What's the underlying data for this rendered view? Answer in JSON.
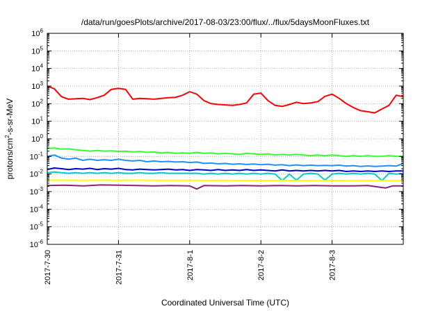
{
  "chart_data": {
    "type": "line",
    "title": "/data/run/goesPlots/archive/2017-08-03/23:00/flux/../flux/5daysMoonFluxes.txt",
    "xlabel": "Coordinated Universal Time (UTC)",
    "ylabel_parts": {
      "base": "protons/cm",
      "sup": "2",
      "rest": "-s-sr-MeV"
    },
    "y_scale": "log",
    "ylim_exp": [
      -6,
      6
    ],
    "y_tick_labels": [
      {
        "base": "10",
        "exp": "-6"
      },
      {
        "base": "10",
        "exp": "-5"
      },
      {
        "base": "10",
        "exp": "-4"
      },
      {
        "base": "10",
        "exp": "-3"
      },
      {
        "base": "10",
        "exp": "-2"
      },
      {
        "base": "10",
        "exp": "-1"
      },
      {
        "base": "10",
        "exp": "0"
      },
      {
        "base": "10",
        "exp": "1"
      },
      {
        "base": "10",
        "exp": "2"
      },
      {
        "base": "10",
        "exp": "3"
      },
      {
        "base": "10",
        "exp": "4"
      },
      {
        "base": "10",
        "exp": "5"
      },
      {
        "base": "10",
        "exp": "6"
      }
    ],
    "x_tick_labels": [
      "2017-7-30",
      "2017-7-31",
      "2017-8-1",
      "2017-8-2",
      "2017-8-3"
    ],
    "grid": true,
    "xlim_days": [
      0,
      5
    ],
    "series": [
      {
        "color": "#ff0000",
        "points": [
          [
            0.0,
            1000
          ],
          [
            0.1,
            700
          ],
          [
            0.2,
            250
          ],
          [
            0.3,
            180
          ],
          [
            0.4,
            190
          ],
          [
            0.5,
            200
          ],
          [
            0.6,
            170
          ],
          [
            0.7,
            220
          ],
          [
            0.8,
            300
          ],
          [
            0.9,
            650
          ],
          [
            1.0,
            750
          ],
          [
            1.1,
            650
          ],
          [
            1.2,
            180
          ],
          [
            1.3,
            200
          ],
          [
            1.4,
            190
          ],
          [
            1.5,
            180
          ],
          [
            1.6,
            200
          ],
          [
            1.7,
            220
          ],
          [
            1.8,
            230
          ],
          [
            1.9,
            300
          ],
          [
            2.0,
            480
          ],
          [
            2.1,
            350
          ],
          [
            2.2,
            150
          ],
          [
            2.3,
            100
          ],
          [
            2.4,
            90
          ],
          [
            2.5,
            85
          ],
          [
            2.6,
            80
          ],
          [
            2.7,
            90
          ],
          [
            2.8,
            110
          ],
          [
            2.9,
            350
          ],
          [
            3.0,
            400
          ],
          [
            3.1,
            150
          ],
          [
            3.2,
            80
          ],
          [
            3.3,
            70
          ],
          [
            3.4,
            90
          ],
          [
            3.5,
            120
          ],
          [
            3.6,
            100
          ],
          [
            3.7,
            110
          ],
          [
            3.8,
            130
          ],
          [
            3.9,
            260
          ],
          [
            4.0,
            350
          ],
          [
            4.1,
            200
          ],
          [
            4.2,
            100
          ],
          [
            4.3,
            60
          ],
          [
            4.4,
            40
          ],
          [
            4.5,
            35
          ],
          [
            4.6,
            30
          ],
          [
            4.7,
            50
          ],
          [
            4.8,
            80
          ],
          [
            4.9,
            300
          ],
          [
            5.0,
            250
          ]
        ]
      },
      {
        "color": "#33ff33",
        "points": [
          [
            0.0,
            0.28
          ],
          [
            0.1,
            0.3
          ],
          [
            0.2,
            0.26
          ],
          [
            0.3,
            0.27
          ],
          [
            0.4,
            0.24
          ],
          [
            0.5,
            0.22
          ],
          [
            0.6,
            0.2
          ],
          [
            0.7,
            0.22
          ],
          [
            0.8,
            0.2
          ],
          [
            0.9,
            0.21
          ],
          [
            1.0,
            0.19
          ],
          [
            1.1,
            0.2
          ],
          [
            1.2,
            0.18
          ],
          [
            1.3,
            0.19
          ],
          [
            1.4,
            0.17
          ],
          [
            1.5,
            0.18
          ],
          [
            1.6,
            0.16
          ],
          [
            1.7,
            0.17
          ],
          [
            1.8,
            0.15
          ],
          [
            1.9,
            0.16
          ],
          [
            2.0,
            0.15
          ],
          [
            2.1,
            0.17
          ],
          [
            2.2,
            0.15
          ],
          [
            2.3,
            0.16
          ],
          [
            2.4,
            0.14
          ],
          [
            2.5,
            0.15
          ],
          [
            2.6,
            0.14
          ],
          [
            2.7,
            0.13
          ],
          [
            2.8,
            0.15
          ],
          [
            2.9,
            0.14
          ],
          [
            3.0,
            0.13
          ],
          [
            3.1,
            0.14
          ],
          [
            3.2,
            0.12
          ],
          [
            3.3,
            0.13
          ],
          [
            3.4,
            0.12
          ],
          [
            3.5,
            0.13
          ],
          [
            3.6,
            0.12
          ],
          [
            3.7,
            0.11
          ],
          [
            3.8,
            0.12
          ],
          [
            3.9,
            0.11
          ],
          [
            4.0,
            0.12
          ],
          [
            4.1,
            0.11
          ],
          [
            4.2,
            0.1
          ],
          [
            4.3,
            0.11
          ],
          [
            4.4,
            0.1
          ],
          [
            4.5,
            0.11
          ],
          [
            4.6,
            0.1
          ],
          [
            4.7,
            0.1
          ],
          [
            4.8,
            0.11
          ],
          [
            4.9,
            0.1
          ],
          [
            5.0,
            0.1
          ]
        ]
      },
      {
        "color": "#1e90ff",
        "points": [
          [
            0.0,
            0.1
          ],
          [
            0.1,
            0.12
          ],
          [
            0.2,
            0.08
          ],
          [
            0.3,
            0.07
          ],
          [
            0.4,
            0.08
          ],
          [
            0.5,
            0.06
          ],
          [
            0.6,
            0.07
          ],
          [
            0.7,
            0.06
          ],
          [
            0.8,
            0.065
          ],
          [
            0.9,
            0.06
          ],
          [
            1.0,
            0.07
          ],
          [
            1.1,
            0.06
          ],
          [
            1.2,
            0.055
          ],
          [
            1.3,
            0.06
          ],
          [
            1.4,
            0.05
          ],
          [
            1.5,
            0.055
          ],
          [
            1.6,
            0.05
          ],
          [
            1.7,
            0.052
          ],
          [
            1.8,
            0.048
          ],
          [
            1.9,
            0.05
          ],
          [
            2.0,
            0.045
          ],
          [
            2.1,
            0.048
          ],
          [
            2.2,
            0.04
          ],
          [
            2.3,
            0.042
          ],
          [
            2.4,
            0.038
          ],
          [
            2.5,
            0.04
          ],
          [
            2.6,
            0.036
          ],
          [
            2.7,
            0.038
          ],
          [
            2.8,
            0.035
          ],
          [
            2.9,
            0.037
          ],
          [
            3.0,
            0.034
          ],
          [
            3.1,
            0.036
          ],
          [
            3.2,
            0.032
          ],
          [
            3.3,
            0.034
          ],
          [
            3.4,
            0.03
          ],
          [
            3.5,
            0.033
          ],
          [
            3.6,
            0.03
          ],
          [
            3.7,
            0.032
          ],
          [
            3.8,
            0.03
          ],
          [
            3.9,
            0.031
          ],
          [
            4.0,
            0.03
          ],
          [
            4.1,
            0.032
          ],
          [
            4.2,
            0.028
          ],
          [
            4.3,
            0.03
          ],
          [
            4.4,
            0.027
          ],
          [
            4.5,
            0.029
          ],
          [
            4.6,
            0.027
          ],
          [
            4.7,
            0.028
          ],
          [
            4.8,
            0.03
          ],
          [
            4.9,
            0.028
          ],
          [
            5.0,
            0.04
          ]
        ]
      },
      {
        "color": "#0000cc",
        "points": [
          [
            0.0,
            0.018
          ],
          [
            0.1,
            0.022
          ],
          [
            0.2,
            0.02
          ],
          [
            0.3,
            0.018
          ],
          [
            0.4,
            0.02
          ],
          [
            0.5,
            0.019
          ],
          [
            0.6,
            0.021
          ],
          [
            0.7,
            0.018
          ],
          [
            0.8,
            0.02
          ],
          [
            0.9,
            0.019
          ],
          [
            1.0,
            0.021
          ],
          [
            1.1,
            0.018
          ],
          [
            1.2,
            0.017
          ],
          [
            1.3,
            0.019
          ],
          [
            1.4,
            0.018
          ],
          [
            1.5,
            0.017
          ],
          [
            1.6,
            0.018
          ],
          [
            1.7,
            0.019
          ],
          [
            1.8,
            0.017
          ],
          [
            1.9,
            0.018
          ],
          [
            2.0,
            0.016
          ],
          [
            2.1,
            0.018
          ],
          [
            2.2,
            0.017
          ],
          [
            2.3,
            0.016
          ],
          [
            2.4,
            0.018
          ],
          [
            2.5,
            0.016
          ],
          [
            2.6,
            0.017
          ],
          [
            2.7,
            0.016
          ],
          [
            2.8,
            0.018
          ],
          [
            2.9,
            0.016
          ],
          [
            3.0,
            0.017
          ],
          [
            3.1,
            0.016
          ],
          [
            3.2,
            0.015
          ],
          [
            3.3,
            0.017
          ],
          [
            3.4,
            0.015
          ],
          [
            3.5,
            0.016
          ],
          [
            3.6,
            0.015
          ],
          [
            3.7,
            0.016
          ],
          [
            3.8,
            0.015
          ],
          [
            3.9,
            0.016
          ],
          [
            4.0,
            0.015
          ],
          [
            4.1,
            0.016
          ],
          [
            4.2,
            0.014
          ],
          [
            4.3,
            0.015
          ],
          [
            4.4,
            0.014
          ],
          [
            4.5,
            0.015
          ],
          [
            4.6,
            0.014
          ],
          [
            4.7,
            0.015
          ],
          [
            4.8,
            0.014
          ],
          [
            4.9,
            0.015
          ],
          [
            5.0,
            0.015
          ]
        ]
      },
      {
        "color": "#00cccc",
        "points": [
          [
            0.0,
            0.012
          ],
          [
            0.1,
            0.013
          ],
          [
            0.2,
            0.012
          ],
          [
            0.3,
            0.011
          ],
          [
            0.4,
            0.012
          ],
          [
            0.5,
            0.011
          ],
          [
            0.6,
            0.012
          ],
          [
            0.7,
            0.011
          ],
          [
            0.8,
            0.012
          ],
          [
            0.9,
            0.011
          ],
          [
            1.0,
            0.012
          ],
          [
            1.1,
            0.011
          ],
          [
            1.2,
            0.011
          ],
          [
            1.3,
            0.012
          ],
          [
            1.4,
            0.011
          ],
          [
            1.5,
            0.011
          ],
          [
            1.6,
            0.012
          ],
          [
            1.7,
            0.011
          ],
          [
            1.8,
            0.011
          ],
          [
            1.9,
            0.011
          ],
          [
            2.0,
            0.011
          ],
          [
            2.1,
            0.011
          ],
          [
            2.2,
            0.01
          ],
          [
            2.3,
            0.011
          ],
          [
            2.4,
            0.01
          ],
          [
            2.5,
            0.011
          ],
          [
            2.6,
            0.01
          ],
          [
            2.7,
            0.011
          ],
          [
            2.8,
            0.01
          ],
          [
            2.9,
            0.011
          ],
          [
            3.0,
            0.01
          ],
          [
            3.1,
            0.011
          ],
          [
            3.2,
            0.01
          ],
          [
            3.3,
            0.0042
          ],
          [
            3.4,
            0.01
          ],
          [
            3.5,
            0.0045
          ],
          [
            3.6,
            0.01
          ],
          [
            3.7,
            0.011
          ],
          [
            3.8,
            0.01
          ],
          [
            3.9,
            0.0045
          ],
          [
            4.0,
            0.01
          ],
          [
            4.1,
            0.011
          ],
          [
            4.2,
            0.01
          ],
          [
            4.3,
            0.011
          ],
          [
            4.4,
            0.01
          ],
          [
            4.5,
            0.011
          ],
          [
            4.6,
            0.01
          ],
          [
            4.7,
            0.0042
          ],
          [
            4.8,
            0.011
          ],
          [
            4.9,
            0.01
          ],
          [
            5.0,
            0.011
          ]
        ]
      },
      {
        "color": "#ffff00",
        "points": [
          [
            0.0,
            0.0045
          ],
          [
            0.25,
            0.0045
          ],
          [
            0.5,
            0.0044
          ],
          [
            0.75,
            0.0045
          ],
          [
            1.0,
            0.0044
          ],
          [
            1.25,
            0.0045
          ],
          [
            1.5,
            0.0044
          ],
          [
            1.75,
            0.0044
          ],
          [
            2.0,
            0.0044
          ],
          [
            2.25,
            0.0043
          ],
          [
            2.5,
            0.0044
          ],
          [
            2.75,
            0.0043
          ],
          [
            3.0,
            0.0043
          ],
          [
            3.25,
            0.0043
          ],
          [
            3.5,
            0.0043
          ],
          [
            3.75,
            0.0042
          ],
          [
            4.0,
            0.0043
          ],
          [
            4.25,
            0.0042
          ],
          [
            4.5,
            0.0042
          ],
          [
            4.75,
            0.0042
          ],
          [
            5.0,
            0.0042
          ]
        ]
      },
      {
        "color": "#882277",
        "points": [
          [
            0.0,
            0.0022
          ],
          [
            0.25,
            0.0023
          ],
          [
            0.5,
            0.0021
          ],
          [
            0.75,
            0.0024
          ],
          [
            1.0,
            0.0023
          ],
          [
            1.25,
            0.0022
          ],
          [
            1.5,
            0.0021
          ],
          [
            1.75,
            0.0022
          ],
          [
            2.0,
            0.0021
          ],
          [
            2.1,
            0.0014
          ],
          [
            2.2,
            0.0022
          ],
          [
            2.5,
            0.0021
          ],
          [
            2.75,
            0.0022
          ],
          [
            3.0,
            0.0021
          ],
          [
            3.25,
            0.0022
          ],
          [
            3.5,
            0.0021
          ],
          [
            3.75,
            0.0022
          ],
          [
            4.0,
            0.0021
          ],
          [
            4.25,
            0.0021
          ],
          [
            4.5,
            0.0022
          ],
          [
            4.75,
            0.0016
          ],
          [
            4.85,
            0.0021
          ],
          [
            5.0,
            0.0021
          ]
        ]
      }
    ]
  }
}
